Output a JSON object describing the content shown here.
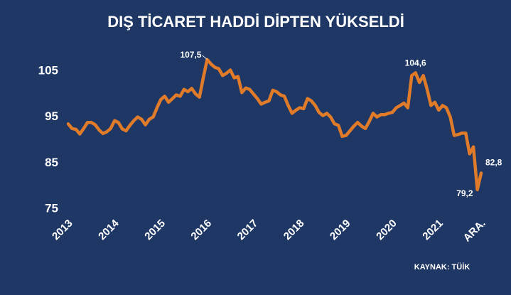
{
  "chart_data": {
    "type": "line",
    "title": "DIŞ TİCARET HADDİ DİPTEN YÜKSELDİ",
    "source": "KAYNAK: TÜİK",
    "categories": [
      "2013",
      null,
      null,
      null,
      null,
      null,
      null,
      null,
      null,
      null,
      null,
      null,
      "2014",
      null,
      null,
      null,
      null,
      null,
      null,
      null,
      null,
      null,
      null,
      null,
      "2015",
      null,
      null,
      null,
      null,
      null,
      null,
      null,
      null,
      null,
      null,
      null,
      "2016",
      null,
      null,
      null,
      null,
      null,
      null,
      null,
      null,
      null,
      null,
      null,
      "2017",
      null,
      null,
      null,
      null,
      null,
      null,
      null,
      null,
      null,
      null,
      null,
      "2018",
      null,
      null,
      null,
      null,
      null,
      null,
      null,
      null,
      null,
      null,
      null,
      "2019",
      null,
      null,
      null,
      null,
      null,
      null,
      null,
      null,
      null,
      null,
      null,
      "2020",
      null,
      null,
      null,
      null,
      null,
      null,
      null,
      null,
      null,
      null,
      null,
      "2021",
      null,
      null,
      null,
      null,
      null,
      null,
      null,
      null,
      null,
      null,
      "ARA."
    ],
    "values": [
      93.5,
      92.5,
      92.3,
      91.3,
      92.5,
      93.8,
      93.8,
      93.3,
      92.2,
      91.4,
      91.8,
      92.5,
      94.2,
      93.8,
      92.4,
      92.0,
      93.2,
      94.2,
      95.0,
      94.5,
      93.3,
      94.5,
      95.0,
      97.0,
      98.8,
      99.5,
      98.2,
      99.0,
      99.8,
      99.5,
      101.0,
      100.5,
      101.2,
      100.0,
      99.3,
      103.5,
      107.5,
      106.5,
      105.8,
      105.5,
      104.0,
      104.5,
      105.2,
      103.5,
      103.8,
      100.3,
      101.3,
      101.0,
      100.0,
      99.0,
      97.8,
      98.2,
      98.5,
      100.8,
      100.5,
      99.8,
      99.5,
      97.5,
      95.8,
      96.5,
      97.0,
      96.8,
      99.0,
      98.5,
      97.5,
      96.0,
      95.3,
      95.8,
      95.0,
      93.5,
      93.2,
      90.8,
      91.0,
      92.0,
      93.0,
      93.8,
      93.0,
      92.5,
      94.0,
      95.8,
      95.0,
      95.5,
      95.5,
      95.8,
      96.0,
      97.0,
      97.5,
      98.0,
      97.0,
      104.0,
      104.6,
      102.5,
      104.0,
      101.0,
      97.5,
      98.2,
      96.5,
      97.5,
      97.0,
      95.0,
      91.0,
      91.2,
      91.5,
      91.5,
      87.0,
      88.5,
      79.2,
      82.8
    ],
    "value_labels": [
      null,
      null,
      null,
      null,
      null,
      null,
      null,
      null,
      null,
      null,
      null,
      null,
      null,
      null,
      null,
      null,
      null,
      null,
      null,
      null,
      null,
      null,
      null,
      null,
      null,
      null,
      null,
      null,
      null,
      null,
      null,
      null,
      null,
      null,
      null,
      null,
      "107,5",
      null,
      null,
      null,
      null,
      null,
      null,
      null,
      null,
      null,
      null,
      null,
      null,
      null,
      null,
      null,
      null,
      null,
      null,
      null,
      null,
      null,
      null,
      null,
      null,
      null,
      null,
      null,
      null,
      null,
      null,
      null,
      null,
      null,
      null,
      null,
      null,
      null,
      null,
      null,
      null,
      null,
      null,
      null,
      null,
      null,
      null,
      null,
      null,
      null,
      null,
      null,
      null,
      null,
      "104,6",
      null,
      null,
      null,
      null,
      null,
      null,
      null,
      null,
      null,
      null,
      null,
      null,
      null,
      null,
      null,
      "79,2",
      "82,8"
    ],
    "color": "#e07b2a",
    "ylim": [
      74,
      111
    ],
    "yticks": [
      75,
      85,
      95,
      105
    ],
    "grid": false
  }
}
